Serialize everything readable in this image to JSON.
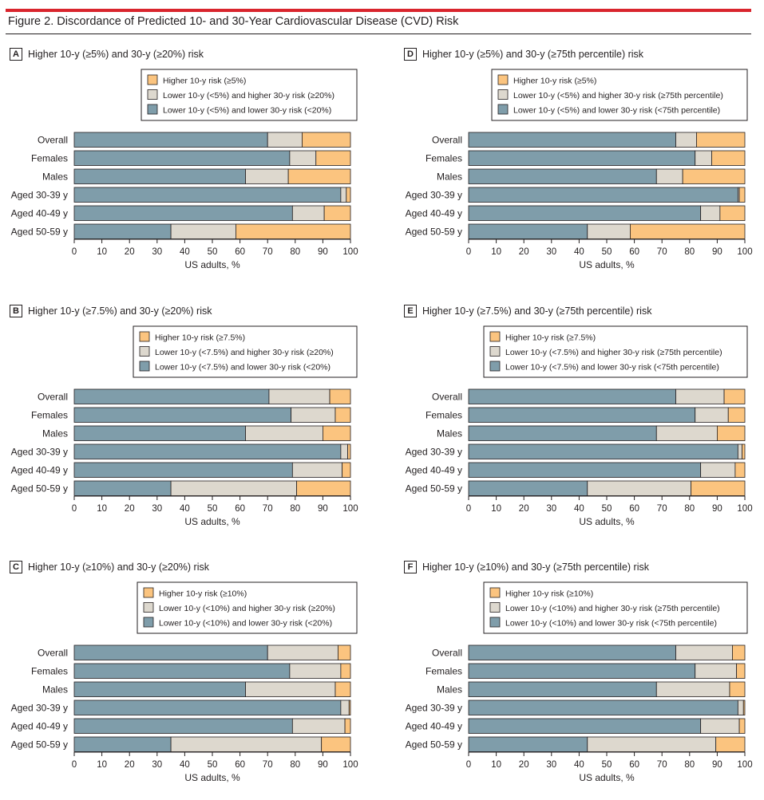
{
  "figure_title": "Figure 2. Discordance of Predicted 10- and 30-Year Cardiovascular Disease (CVD) Risk",
  "colors": {
    "lower_both": "#7f9daa",
    "mid": "#ddd8ce",
    "higher10": "#fbc47f",
    "rule": "#d9252d",
    "text": "#231f20"
  },
  "chart_data": [
    {
      "panel": "A",
      "type": "bar",
      "stacked": true,
      "orientation": "horizontal",
      "title": "Higher 10-y (≥5%) and 30-y (≥20%) risk",
      "legend": [
        "Higher 10-y risk (≥5%)",
        "Lower 10-y (<5%) and higher 30-y risk (≥20%)",
        "Lower 10-y (<5%) and lower 30-y risk (<20%)"
      ],
      "categories": [
        "Overall",
        "Females",
        "Males",
        "Aged 30-39 y",
        "Aged 40-49 y",
        "Aged 50-59 y"
      ],
      "series": [
        {
          "name": "Lower 10-y (<5%) and lower 30-y risk (<20%)",
          "values": [
            70,
            78,
            62,
            96.5,
            79,
            35
          ]
        },
        {
          "name": "Lower 10-y (<5%) and higher 30-y risk (≥20%)",
          "values": [
            12.5,
            9.5,
            15.5,
            2,
            11.5,
            23.5
          ]
        },
        {
          "name": "Higher 10-y risk (≥5%)",
          "values": [
            17.5,
            12.5,
            22.5,
            1.5,
            9.5,
            41.5
          ]
        }
      ],
      "xlabel": "US adults, %",
      "xlim": [
        0,
        100
      ],
      "xticks": [
        0,
        10,
        20,
        30,
        40,
        50,
        60,
        70,
        80,
        90,
        100
      ]
    },
    {
      "panel": "D",
      "type": "bar",
      "stacked": true,
      "orientation": "horizontal",
      "title": "Higher 10-y (≥5%) and 30-y (≥75th percentile) risk",
      "legend": [
        "Higher 10-y risk (≥5%)",
        "Lower 10-y (<5%) and higher 30-y risk (≥75th percentile)",
        "Lower 10-y (<5%) and lower 30-y risk (<75th percentile)"
      ],
      "categories": [
        "Overall",
        "Females",
        "Males",
        "Aged 30-39 y",
        "Aged 40-49 y",
        "Aged 50-59 y"
      ],
      "series": [
        {
          "name": "Lower 10-y (<5%) and lower 30-y risk (<75th percentile)",
          "values": [
            75,
            82,
            68,
            97.5,
            84,
            43
          ]
        },
        {
          "name": "Lower 10-y (<5%) and higher 30-y risk (≥75th percentile)",
          "values": [
            7.5,
            6,
            9.5,
            0.5,
            7,
            15.5
          ]
        },
        {
          "name": "Higher 10-y risk (≥5%)",
          "values": [
            17.5,
            12,
            22.5,
            2,
            9,
            41.5
          ]
        }
      ],
      "xlabel": "US adults, %",
      "xlim": [
        0,
        100
      ],
      "xticks": [
        0,
        10,
        20,
        30,
        40,
        50,
        60,
        70,
        80,
        90,
        100
      ]
    },
    {
      "panel": "B",
      "type": "bar",
      "stacked": true,
      "orientation": "horizontal",
      "title": "Higher 10-y (≥7.5%) and 30-y (≥20%) risk",
      "legend": [
        "Higher 10-y risk (≥7.5%)",
        "Lower 10-y (<7.5%) and higher 30-y risk (≥20%)",
        "Lower 10-y (<7.5%) and lower 30-y risk (<20%)"
      ],
      "categories": [
        "Overall",
        "Females",
        "Males",
        "Aged 30-39 y",
        "Aged 40-49 y",
        "Aged 50-59 y"
      ],
      "series": [
        {
          "name": "Lower 10-y (<7.5%) and lower 30-y risk (<20%)",
          "values": [
            70.5,
            78.5,
            62,
            96.5,
            79,
            35
          ]
        },
        {
          "name": "Lower 10-y (<7.5%) and higher 30-y risk (≥20%)",
          "values": [
            22,
            16,
            28,
            2.5,
            18,
            45.5
          ]
        },
        {
          "name": "Higher 10-y risk (≥7.5%)",
          "values": [
            7.5,
            5.5,
            10,
            1,
            3,
            19.5
          ]
        }
      ],
      "xlabel": "US adults, %",
      "xlim": [
        0,
        100
      ],
      "xticks": [
        0,
        10,
        20,
        30,
        40,
        50,
        60,
        70,
        80,
        90,
        100
      ]
    },
    {
      "panel": "E",
      "type": "bar",
      "stacked": true,
      "orientation": "horizontal",
      "title": "Higher 10-y (≥7.5%) and 30-y (≥75th percentile) risk",
      "legend": [
        "Higher 10-y risk (≥7.5%)",
        "Lower 10-y (<7.5%) and higher 30-y risk (≥75th percentile)",
        "Lower 10-y (<7.5%) and lower 30-y risk (<75th percentile)"
      ],
      "categories": [
        "Overall",
        "Females",
        "Males",
        "Aged 30-39 y",
        "Aged 40-49 y",
        "Aged 50-59 y"
      ],
      "series": [
        {
          "name": "Lower 10-y (<7.5%) and lower 30-y risk (<75th percentile)",
          "values": [
            75,
            82,
            68,
            97.5,
            84,
            43
          ]
        },
        {
          "name": "Lower 10-y (<7.5%) and higher 30-y risk (≥75th percentile)",
          "values": [
            17.5,
            12,
            22,
            1.5,
            12.5,
            37.5
          ]
        },
        {
          "name": "Higher 10-y risk (≥7.5%)",
          "values": [
            7.5,
            6,
            10,
            1,
            3.5,
            19.5
          ]
        }
      ],
      "xlabel": "US adults, %",
      "xlim": [
        0,
        100
      ],
      "xticks": [
        0,
        10,
        20,
        30,
        40,
        50,
        60,
        70,
        80,
        90,
        100
      ]
    },
    {
      "panel": "C",
      "type": "bar",
      "stacked": true,
      "orientation": "horizontal",
      "title": "Higher 10-y (≥10%) and 30-y (≥20%) risk",
      "legend": [
        "Higher 10-y risk (≥10%)",
        "Lower 10-y (<10%) and higher 30-y risk (≥20%)",
        "Lower 10-y (<10%) and lower 30-y risk (<20%)"
      ],
      "categories": [
        "Overall",
        "Females",
        "Males",
        "Aged 30-39 y",
        "Aged 40-49 y",
        "Aged 50-59 y"
      ],
      "series": [
        {
          "name": "Lower 10-y (<10%) and lower 30-y risk (<20%)",
          "values": [
            70,
            78,
            62,
            96.5,
            79,
            35
          ]
        },
        {
          "name": "Lower 10-y (<10%) and higher 30-y risk (≥20%)",
          "values": [
            25.5,
            18.5,
            32.5,
            3,
            19,
            54.5
          ]
        },
        {
          "name": "Higher 10-y risk (≥10%)",
          "values": [
            4.5,
            3.5,
            5.5,
            0.5,
            2,
            10.5
          ]
        }
      ],
      "xlabel": "US adults, %",
      "xlim": [
        0,
        100
      ],
      "xticks": [
        0,
        10,
        20,
        30,
        40,
        50,
        60,
        70,
        80,
        90,
        100
      ]
    },
    {
      "panel": "F",
      "type": "bar",
      "stacked": true,
      "orientation": "horizontal",
      "title": "Higher 10-y (≥10%) and 30-y (≥75th percentile) risk",
      "legend": [
        "Higher 10-y risk (≥10%)",
        "Lower 10-y (<10%) and higher 30-y risk (≥75th percentile)",
        "Lower 10-y (<10%) and lower 30-y risk (<75th percentile)"
      ],
      "categories": [
        "Overall",
        "Females",
        "Males",
        "Aged 30-39 y",
        "Aged 40-49 y",
        "Aged 50-59 y"
      ],
      "series": [
        {
          "name": "Lower 10-y (<10%) and lower 30-y risk (<75th percentile)",
          "values": [
            75,
            82,
            68,
            97.5,
            84,
            43
          ]
        },
        {
          "name": "Lower 10-y (<10%) and higher 30-y risk (≥75th percentile)",
          "values": [
            20.5,
            15,
            26.5,
            2,
            14,
            46.5
          ]
        },
        {
          "name": "Higher 10-y risk (≥10%)",
          "values": [
            4.5,
            3,
            5.5,
            0.5,
            2,
            10.5
          ]
        }
      ],
      "xlabel": "US adults, %",
      "xlim": [
        0,
        100
      ],
      "xticks": [
        0,
        10,
        20,
        30,
        40,
        50,
        60,
        70,
        80,
        90,
        100
      ]
    }
  ]
}
